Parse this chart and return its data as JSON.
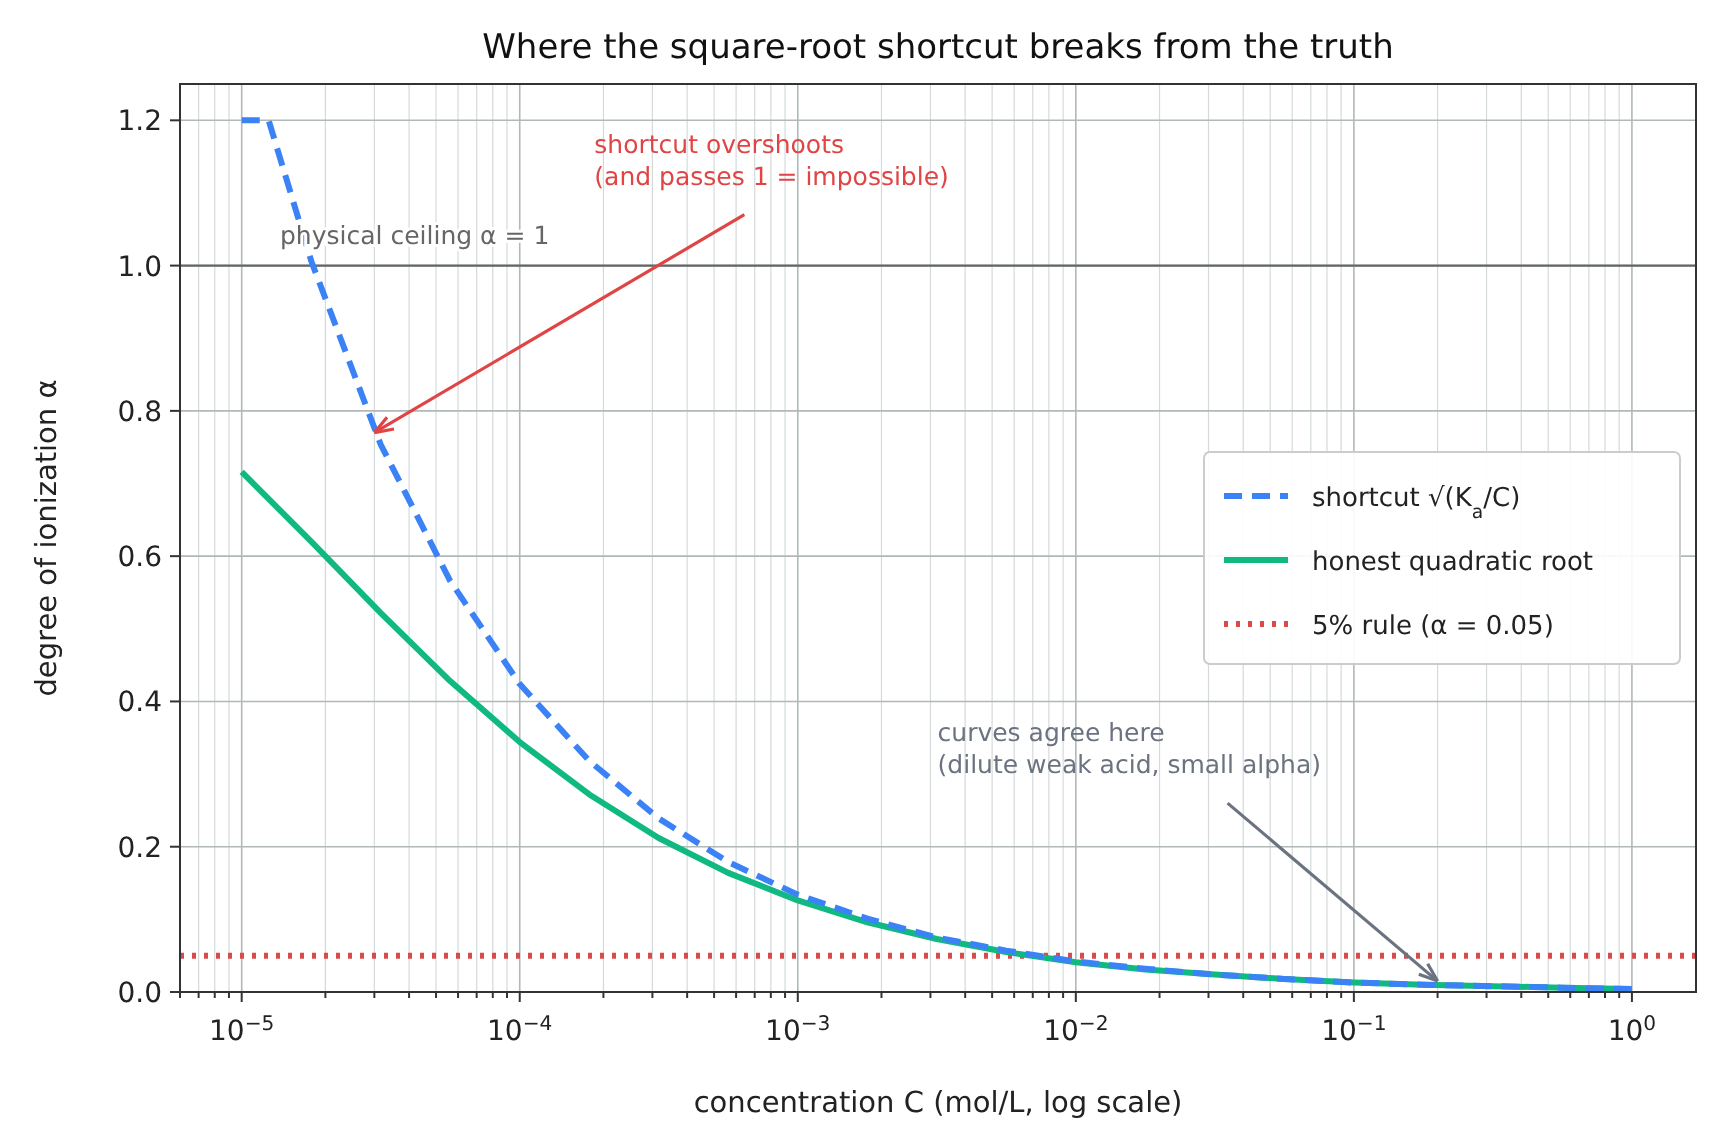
{
  "chart_data": {
    "type": "line",
    "title": "Where the square-root shortcut breaks from the truth",
    "xlabel": "concentration  C  (mol/L, log scale)",
    "ylabel": "degree of ionization  α",
    "log": "x",
    "grid": true,
    "legend": "right",
    "marker": "none",
    "xlim": [
      6e-06,
      1.7
    ],
    "ylim": [
      0,
      1.25
    ],
    "xticks": [
      {
        "value": 6e-06,
        "label": null
      },
      {
        "value": 7e-06,
        "label": null
      },
      {
        "value": 8e-06,
        "label": null
      },
      {
        "value": 9e-06,
        "label": null
      },
      {
        "value": 1e-05,
        "label": "10$^{−5}$"
      },
      {
        "value": 2e-05,
        "label": null
      },
      {
        "value": 3e-05,
        "label": null
      },
      {
        "value": 4e-05,
        "label": null
      },
      {
        "value": 5e-05,
        "label": null
      },
      {
        "value": 6e-05,
        "label": null
      },
      {
        "value": 7e-05,
        "label": null
      },
      {
        "value": 8e-05,
        "label": null
      },
      {
        "value": 9e-05,
        "label": null
      },
      {
        "value": 0.0001,
        "label": "10$^{−4}$"
      },
      {
        "value": 0.0002,
        "label": null
      },
      {
        "value": 0.0003,
        "label": null
      },
      {
        "value": 0.0004,
        "label": null
      },
      {
        "value": 0.0005,
        "label": null
      },
      {
        "value": 0.0006,
        "label": null
      },
      {
        "value": 0.0007,
        "label": null
      },
      {
        "value": 0.0008,
        "label": null
      },
      {
        "value": 0.0009,
        "label": null
      },
      {
        "value": 0.001,
        "label": "10$^{−3}$"
      },
      {
        "value": 0.002,
        "label": null
      },
      {
        "value": 0.003,
        "label": null
      },
      {
        "value": 0.004,
        "label": null
      },
      {
        "value": 0.005,
        "label": null
      },
      {
        "value": 0.006,
        "label": null
      },
      {
        "value": 0.007,
        "label": null
      },
      {
        "value": 0.008,
        "label": null
      },
      {
        "value": 0.009,
        "label": null
      },
      {
        "value": 0.01,
        "label": "10$^{−2}$"
      },
      {
        "value": 0.02,
        "label": null
      },
      {
        "value": 0.03,
        "label": null
      },
      {
        "value": 0.04,
        "label": null
      },
      {
        "value": 0.05,
        "label": null
      },
      {
        "value": 0.06,
        "label": null
      },
      {
        "value": 0.07,
        "label": null
      },
      {
        "value": 0.08,
        "label": null
      },
      {
        "value": 0.09,
        "label": null
      },
      {
        "value": 0.1,
        "label": "10$^{−1}$"
      },
      {
        "value": 0.2,
        "label": null
      },
      {
        "value": 0.3,
        "label": null
      },
      {
        "value": 0.4,
        "label": null
      },
      {
        "value": 0.5,
        "label": null
      },
      {
        "value": 0.6,
        "label": null
      },
      {
        "value": 0.7,
        "label": null
      },
      {
        "value": 0.8,
        "label": null
      },
      {
        "value": 0.9,
        "label": null
      },
      {
        "value": 1,
        "label": "10$^{0}$"
      }
    ],
    "yticks": [
      {
        "value": 0,
        "label": "0.0"
      },
      {
        "value": 0.2,
        "label": "0.2"
      },
      {
        "value": 0.4,
        "label": "0.4"
      },
      {
        "value": 0.6,
        "label": "0.6"
      },
      {
        "value": 0.8,
        "label": "0.8"
      },
      {
        "value": 1,
        "label": "1.0"
      },
      {
        "value": 1.2,
        "label": "1.2"
      }
    ],
    "x": [
      1e-05,
      1.25e-05,
      1.78e-05,
      3.16e-05,
      5.62e-05,
      0.0001,
      0.000178,
      0.000316,
      0.000562,
      0.001,
      0.00178,
      0.00316,
      0.00562,
      0.01,
      0.0178,
      0.0316,
      0.0562,
      0.1,
      0.178,
      0.316,
      0.562,
      1
    ],
    "series": [
      {
        "name": "shortcut √(K$_{a}$/C)",
        "color": "#3b82f6",
        "line_style": "dashed",
        "values": [
          1.2,
          1.2,
          1.006,
          0.754,
          0.566,
          0.424,
          0.318,
          0.239,
          0.179,
          0.134,
          0.101,
          0.075,
          0.057,
          0.042,
          0.032,
          0.024,
          0.018,
          0.013,
          0.01,
          0.008,
          0.006,
          0.004
        ]
      },
      {
        "name": "honest quadratic root",
        "color": "#10b981",
        "line_style": "solid",
        "x": [
          1e-05,
          1.78e-05,
          3.16e-05,
          5.62e-05,
          0.0001,
          0.000178,
          0.000316,
          0.000562,
          0.001,
          0.00178,
          0.00316,
          0.00562,
          0.01,
          0.0178,
          0.0316,
          0.0562,
          0.1,
          0.178,
          0.316,
          0.562,
          1
        ],
        "values": [
          0.716,
          0.62,
          0.522,
          0.428,
          0.344,
          0.272,
          0.212,
          0.164,
          0.126,
          0.096,
          0.073,
          0.055,
          0.041,
          0.031,
          0.024,
          0.018,
          0.013,
          0.01,
          0.008,
          0.006,
          0.004
        ]
      },
      {
        "name": "5% rule (α = 0.05)",
        "color": "#d94a4a",
        "line_style": "dotted",
        "x": [
          6e-06,
          1.7
        ],
        "values": [
          0.05,
          0.05
        ]
      }
    ],
    "ref_lines": [
      {
        "axis": "y",
        "value": 1,
        "label": "physical ceiling α = 1",
        "color": "#666666"
      }
    ],
    "annotations": [
      {
        "text": "shortcut overshoots\n(and passes 1 = impossible)",
        "x": 3e-05,
        "y": 0.77
      },
      {
        "text": "curves agree here\n(dilute weak acid, small alpha)",
        "x": 0.2,
        "y": 0.015
      }
    ]
  }
}
